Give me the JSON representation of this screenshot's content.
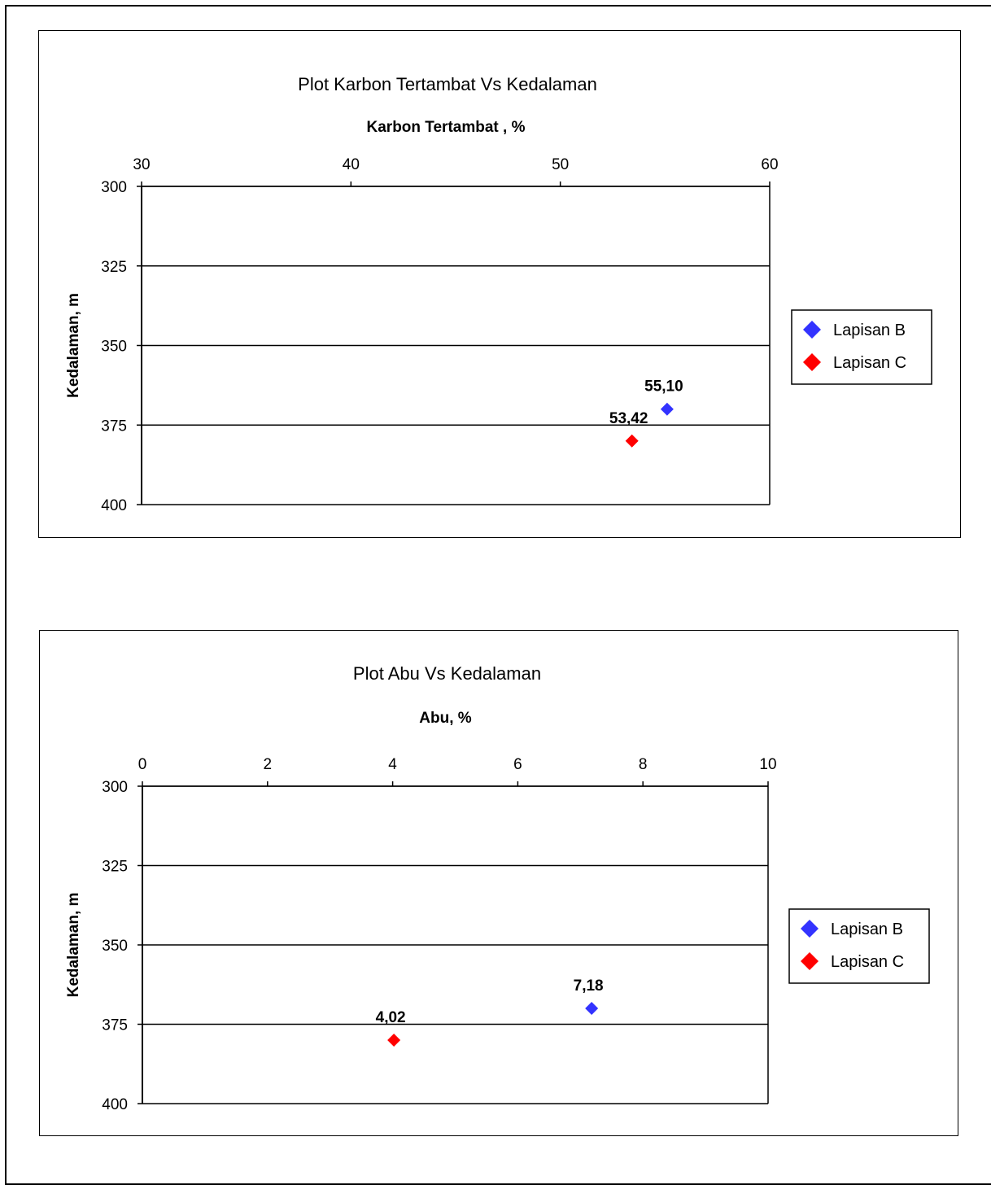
{
  "chart_data": [
    {
      "type": "scatter",
      "title": "Plot  Karbon Tertambat Vs Kedalaman",
      "xlabel": "Karbon Tertambat , %",
      "ylabel": "Kedalaman, m",
      "x_axis_position": "top",
      "y_axis_reversed": true,
      "xlim": [
        30,
        60
      ],
      "ylim": [
        300,
        400
      ],
      "x_ticks": [
        "30",
        "40",
        "50",
        "60"
      ],
      "y_ticks": [
        "300",
        "325",
        "350",
        "375",
        "400"
      ],
      "grid": "horizontal",
      "legend_position": "right",
      "series": [
        {
          "name": "Lapisan B",
          "color": "#3333ff",
          "marker": "diamond",
          "points": [
            {
              "x": 55.1,
              "y": 370,
              "label": "55,10"
            }
          ]
        },
        {
          "name": "Lapisan C",
          "color": "#ff0000",
          "marker": "diamond",
          "points": [
            {
              "x": 53.42,
              "y": 380,
              "label": "53,42"
            }
          ]
        }
      ]
    },
    {
      "type": "scatter",
      "title": "Plot  Abu Vs Kedalaman",
      "xlabel": "Abu, %",
      "ylabel": "Kedalaman, m",
      "x_axis_position": "top",
      "y_axis_reversed": true,
      "xlim": [
        0,
        10
      ],
      "ylim": [
        300,
        400
      ],
      "x_ticks": [
        "0",
        "2",
        "4",
        "6",
        "8",
        "10"
      ],
      "y_ticks": [
        "300",
        "325",
        "350",
        "375",
        "400"
      ],
      "grid": "horizontal",
      "legend_position": "right",
      "series": [
        {
          "name": "Lapisan B",
          "color": "#3333ff",
          "marker": "diamond",
          "points": [
            {
              "x": 7.18,
              "y": 370,
              "label": "7,18"
            }
          ]
        },
        {
          "name": "Lapisan C",
          "color": "#ff0000",
          "marker": "diamond",
          "points": [
            {
              "x": 4.02,
              "y": 380,
              "label": "4,02"
            }
          ]
        }
      ]
    }
  ]
}
